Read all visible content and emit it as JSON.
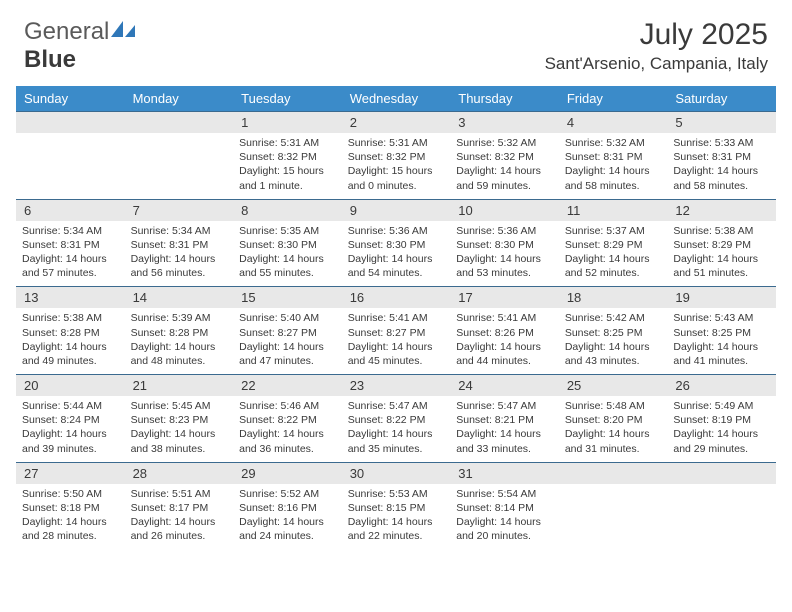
{
  "logo": {
    "text_general": "General",
    "text_blue": "Blue"
  },
  "title": "July 2025",
  "location": "Sant'Arsenio, Campania, Italy",
  "colors": {
    "header_bg": "#3b8bc9",
    "header_text": "#ffffff",
    "daynum_bg": "#e8e8e8",
    "border": "#3b6a8f",
    "text": "#3a3a3a",
    "logo_accent": "#2f77b8"
  },
  "weekdays": [
    "Sunday",
    "Monday",
    "Tuesday",
    "Wednesday",
    "Thursday",
    "Friday",
    "Saturday"
  ],
  "weeks": [
    {
      "nums": [
        "",
        "",
        "1",
        "2",
        "3",
        "4",
        "5"
      ],
      "cells": [
        null,
        null,
        {
          "sunrise": "Sunrise: 5:31 AM",
          "sunset": "Sunset: 8:32 PM",
          "day1": "Daylight: 15 hours",
          "day2": "and 1 minute."
        },
        {
          "sunrise": "Sunrise: 5:31 AM",
          "sunset": "Sunset: 8:32 PM",
          "day1": "Daylight: 15 hours",
          "day2": "and 0 minutes."
        },
        {
          "sunrise": "Sunrise: 5:32 AM",
          "sunset": "Sunset: 8:32 PM",
          "day1": "Daylight: 14 hours",
          "day2": "and 59 minutes."
        },
        {
          "sunrise": "Sunrise: 5:32 AM",
          "sunset": "Sunset: 8:31 PM",
          "day1": "Daylight: 14 hours",
          "day2": "and 58 minutes."
        },
        {
          "sunrise": "Sunrise: 5:33 AM",
          "sunset": "Sunset: 8:31 PM",
          "day1": "Daylight: 14 hours",
          "day2": "and 58 minutes."
        }
      ]
    },
    {
      "nums": [
        "6",
        "7",
        "8",
        "9",
        "10",
        "11",
        "12"
      ],
      "cells": [
        {
          "sunrise": "Sunrise: 5:34 AM",
          "sunset": "Sunset: 8:31 PM",
          "day1": "Daylight: 14 hours",
          "day2": "and 57 minutes."
        },
        {
          "sunrise": "Sunrise: 5:34 AM",
          "sunset": "Sunset: 8:31 PM",
          "day1": "Daylight: 14 hours",
          "day2": "and 56 minutes."
        },
        {
          "sunrise": "Sunrise: 5:35 AM",
          "sunset": "Sunset: 8:30 PM",
          "day1": "Daylight: 14 hours",
          "day2": "and 55 minutes."
        },
        {
          "sunrise": "Sunrise: 5:36 AM",
          "sunset": "Sunset: 8:30 PM",
          "day1": "Daylight: 14 hours",
          "day2": "and 54 minutes."
        },
        {
          "sunrise": "Sunrise: 5:36 AM",
          "sunset": "Sunset: 8:30 PM",
          "day1": "Daylight: 14 hours",
          "day2": "and 53 minutes."
        },
        {
          "sunrise": "Sunrise: 5:37 AM",
          "sunset": "Sunset: 8:29 PM",
          "day1": "Daylight: 14 hours",
          "day2": "and 52 minutes."
        },
        {
          "sunrise": "Sunrise: 5:38 AM",
          "sunset": "Sunset: 8:29 PM",
          "day1": "Daylight: 14 hours",
          "day2": "and 51 minutes."
        }
      ]
    },
    {
      "nums": [
        "13",
        "14",
        "15",
        "16",
        "17",
        "18",
        "19"
      ],
      "cells": [
        {
          "sunrise": "Sunrise: 5:38 AM",
          "sunset": "Sunset: 8:28 PM",
          "day1": "Daylight: 14 hours",
          "day2": "and 49 minutes."
        },
        {
          "sunrise": "Sunrise: 5:39 AM",
          "sunset": "Sunset: 8:28 PM",
          "day1": "Daylight: 14 hours",
          "day2": "and 48 minutes."
        },
        {
          "sunrise": "Sunrise: 5:40 AM",
          "sunset": "Sunset: 8:27 PM",
          "day1": "Daylight: 14 hours",
          "day2": "and 47 minutes."
        },
        {
          "sunrise": "Sunrise: 5:41 AM",
          "sunset": "Sunset: 8:27 PM",
          "day1": "Daylight: 14 hours",
          "day2": "and 45 minutes."
        },
        {
          "sunrise": "Sunrise: 5:41 AM",
          "sunset": "Sunset: 8:26 PM",
          "day1": "Daylight: 14 hours",
          "day2": "and 44 minutes."
        },
        {
          "sunrise": "Sunrise: 5:42 AM",
          "sunset": "Sunset: 8:25 PM",
          "day1": "Daylight: 14 hours",
          "day2": "and 43 minutes."
        },
        {
          "sunrise": "Sunrise: 5:43 AM",
          "sunset": "Sunset: 8:25 PM",
          "day1": "Daylight: 14 hours",
          "day2": "and 41 minutes."
        }
      ]
    },
    {
      "nums": [
        "20",
        "21",
        "22",
        "23",
        "24",
        "25",
        "26"
      ],
      "cells": [
        {
          "sunrise": "Sunrise: 5:44 AM",
          "sunset": "Sunset: 8:24 PM",
          "day1": "Daylight: 14 hours",
          "day2": "and 39 minutes."
        },
        {
          "sunrise": "Sunrise: 5:45 AM",
          "sunset": "Sunset: 8:23 PM",
          "day1": "Daylight: 14 hours",
          "day2": "and 38 minutes."
        },
        {
          "sunrise": "Sunrise: 5:46 AM",
          "sunset": "Sunset: 8:22 PM",
          "day1": "Daylight: 14 hours",
          "day2": "and 36 minutes."
        },
        {
          "sunrise": "Sunrise: 5:47 AM",
          "sunset": "Sunset: 8:22 PM",
          "day1": "Daylight: 14 hours",
          "day2": "and 35 minutes."
        },
        {
          "sunrise": "Sunrise: 5:47 AM",
          "sunset": "Sunset: 8:21 PM",
          "day1": "Daylight: 14 hours",
          "day2": "and 33 minutes."
        },
        {
          "sunrise": "Sunrise: 5:48 AM",
          "sunset": "Sunset: 8:20 PM",
          "day1": "Daylight: 14 hours",
          "day2": "and 31 minutes."
        },
        {
          "sunrise": "Sunrise: 5:49 AM",
          "sunset": "Sunset: 8:19 PM",
          "day1": "Daylight: 14 hours",
          "day2": "and 29 minutes."
        }
      ]
    },
    {
      "nums": [
        "27",
        "28",
        "29",
        "30",
        "31",
        "",
        ""
      ],
      "cells": [
        {
          "sunrise": "Sunrise: 5:50 AM",
          "sunset": "Sunset: 8:18 PM",
          "day1": "Daylight: 14 hours",
          "day2": "and 28 minutes."
        },
        {
          "sunrise": "Sunrise: 5:51 AM",
          "sunset": "Sunset: 8:17 PM",
          "day1": "Daylight: 14 hours",
          "day2": "and 26 minutes."
        },
        {
          "sunrise": "Sunrise: 5:52 AM",
          "sunset": "Sunset: 8:16 PM",
          "day1": "Daylight: 14 hours",
          "day2": "and 24 minutes."
        },
        {
          "sunrise": "Sunrise: 5:53 AM",
          "sunset": "Sunset: 8:15 PM",
          "day1": "Daylight: 14 hours",
          "day2": "and 22 minutes."
        },
        {
          "sunrise": "Sunrise: 5:54 AM",
          "sunset": "Sunset: 8:14 PM",
          "day1": "Daylight: 14 hours",
          "day2": "and 20 minutes."
        },
        null,
        null
      ]
    }
  ]
}
